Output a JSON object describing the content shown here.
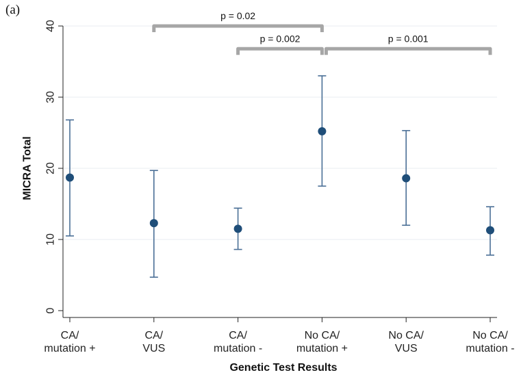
{
  "panel_label": "(a)",
  "chart_data": {
    "type": "scatter",
    "title": "",
    "xlabel": "Genetic Test Results",
    "ylabel": "MICRA Total",
    "ylim": [
      0,
      40
    ],
    "yticks": [
      0,
      10,
      20,
      30,
      40
    ],
    "grid": true,
    "categories": [
      [
        "CA/",
        "mutation +"
      ],
      [
        "CA/",
        "VUS"
      ],
      [
        "CA/",
        "mutation -"
      ],
      [
        "No CA/",
        "mutation +"
      ],
      [
        "No CA/",
        "VUS"
      ],
      [
        "No CA/",
        "mutation -"
      ]
    ],
    "series": [
      {
        "values": [
          18.7,
          12.3,
          11.5,
          25.2,
          18.6,
          11.3
        ],
        "lower": [
          10.5,
          4.7,
          8.6,
          17.5,
          12.0,
          7.8
        ],
        "upper": [
          26.8,
          19.7,
          14.4,
          33.0,
          25.3,
          14.6
        ]
      }
    ],
    "color": "#1f4e79",
    "errorbar_color": "#4a6f96",
    "comparisons": [
      {
        "from": 1,
        "to": 3,
        "label": "p = 0.02",
        "level": 40.0
      },
      {
        "from": 2,
        "to": 3,
        "label": "p = 0.002",
        "level": 36.8
      },
      {
        "from": 3,
        "to": 5,
        "label": "p = 0.001",
        "level": 36.8
      }
    ],
    "bracket_color": "#a6a6a6"
  }
}
